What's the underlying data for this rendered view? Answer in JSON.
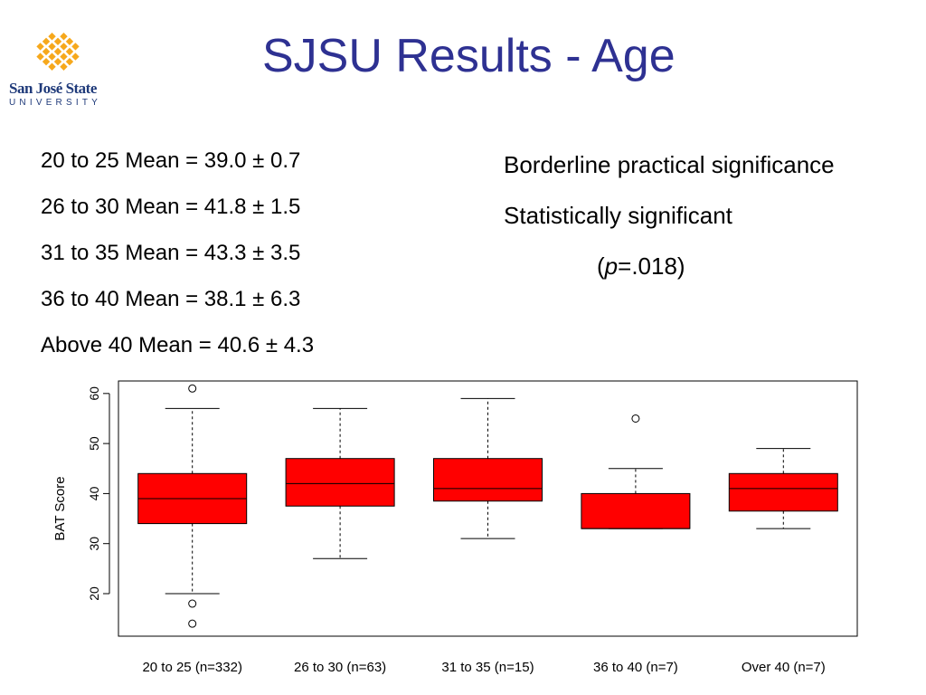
{
  "logo": {
    "name": "San José State",
    "sub": "UNIVERSITY",
    "color": "#f6a81c",
    "icon": "sjsu-diamond-logo-icon"
  },
  "title": "SJSU Results - Age",
  "stats": [
    "20 to 25 Mean = 39.0 ± 0.7",
    "26 to 30 Mean = 41.8 ± 1.5",
    "31 to 35 Mean = 43.3 ± 3.5",
    "36 to 40 Mean = 38.1 ± 6.3",
    "Above 40 Mean = 40.6 ± 4.3"
  ],
  "notes": {
    "line1": "Borderline practical significance",
    "line2": "Statistically significant",
    "p_open": "(",
    "p_symbol": "p",
    "p_value": "=.018)"
  },
  "chart_data": {
    "type": "boxplot",
    "ylabel": "BAT Score",
    "xlabel": "",
    "ylim": [
      11.5,
      62.5
    ],
    "yticks": [
      20,
      30,
      40,
      50,
      60
    ],
    "grid": false,
    "box_color": "#ff0000",
    "categories": [
      "20 to 25 (n=332)",
      "26 to 30 (n=63)",
      "31 to 35 (n=15)",
      "36 to 40 (n=7)",
      "Over 40 (n=7)"
    ],
    "boxes": [
      {
        "whisker_low": 20,
        "q1": 34,
        "median": 39,
        "q3": 44,
        "whisker_high": 57,
        "outliers": [
          61,
          18,
          14
        ]
      },
      {
        "whisker_low": 27,
        "q1": 37.5,
        "median": 42,
        "q3": 47,
        "whisker_high": 57,
        "outliers": []
      },
      {
        "whisker_low": 31,
        "q1": 38.5,
        "median": 41,
        "q3": 47,
        "whisker_high": 59,
        "outliers": []
      },
      {
        "whisker_low": 33,
        "q1": 33,
        "median": 33,
        "q3": 40,
        "whisker_high": 45,
        "outliers": [
          55
        ]
      },
      {
        "whisker_low": 33,
        "q1": 36.5,
        "median": 41,
        "q3": 44,
        "whisker_high": 49,
        "outliers": []
      }
    ]
  }
}
